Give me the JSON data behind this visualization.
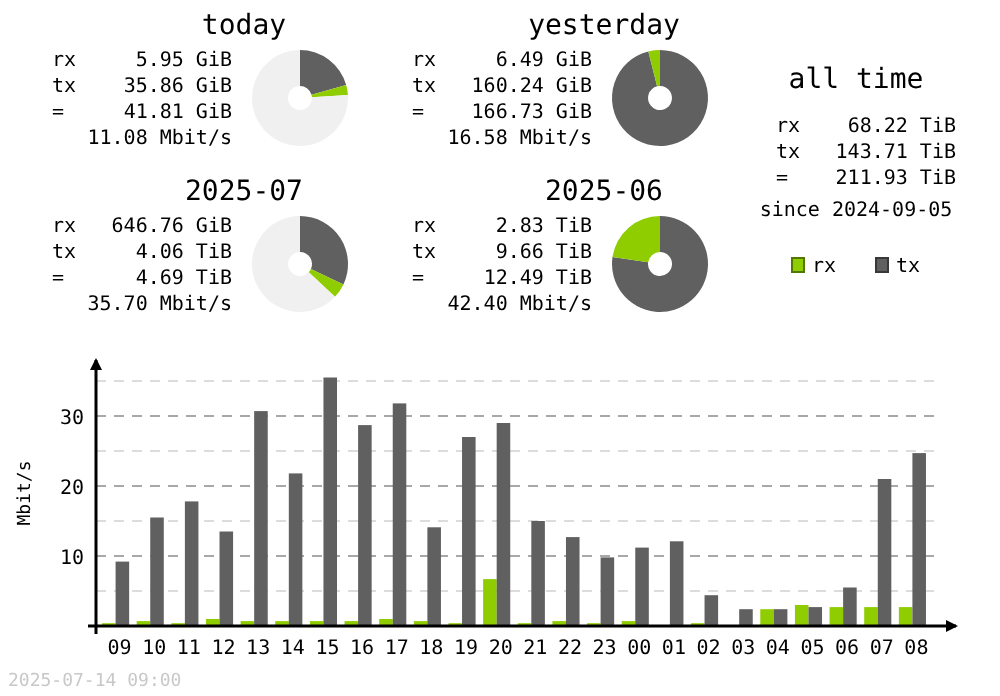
{
  "chart_data": [
    {
      "type": "donut",
      "title": "today",
      "categories": [
        null,
        null,
        null
      ],
      "values": [
        20.6,
        3.4,
        76
      ],
      "colors": [
        "#606060",
        "#8fcc00",
        "#f0f0f0"
      ],
      "annotations": [
        "rx 5.95 GiB",
        "tx 35.86 GiB",
        "= 41.81 GiB",
        "11.08 Mbit/s"
      ]
    },
    {
      "type": "donut",
      "title": "yesterday",
      "categories": [
        null,
        null
      ],
      "values": [
        96.1,
        3.9
      ],
      "colors": [
        "#606060",
        "#8fcc00"
      ],
      "annotations": [
        "rx 6.49 GiB",
        "tx 160.24 GiB",
        "= 166.73 GiB",
        "16.58 Mbit/s"
      ]
    },
    {
      "type": "other",
      "title": "all time",
      "annotations": [
        "rx 68.22 TiB",
        "tx 143.71 TiB",
        "= 211.93 TiB",
        "since 2024-09-05"
      ]
    },
    {
      "type": "donut",
      "title": "2025-07",
      "categories": [
        null,
        null,
        null
      ],
      "values": [
        32,
        5,
        63
      ],
      "colors": [
        "#606060",
        "#8fcc00",
        "#f0f0f0"
      ],
      "annotations": [
        "rx 646.76 GiB",
        "tx 4.06 TiB",
        "= 4.69 TiB",
        "35.70 Mbit/s"
      ]
    },
    {
      "type": "donut",
      "title": "2025-06",
      "categories": [
        null,
        null
      ],
      "values": [
        77.3,
        22.7
      ],
      "colors": [
        "#606060",
        "#8fcc00"
      ],
      "annotations": [
        "rx 2.83 TiB",
        "tx 9.66 TiB",
        "= 12.49 TiB",
        "42.40 Mbit/s"
      ]
    },
    {
      "type": "bar",
      "ylabel": "Mbit/s",
      "categories": [
        "09",
        "10",
        "11",
        "12",
        "13",
        "14",
        "15",
        "16",
        "17",
        "18",
        "19",
        "20",
        "21",
        "22",
        "23",
        "00",
        "01",
        "02",
        "03",
        "04",
        "05",
        "06",
        "07",
        "08"
      ],
      "series": [
        {
          "name": "rx",
          "color": "#8fcc00",
          "values": [
            0.4,
            0.7,
            0.4,
            1.0,
            0.7,
            0.7,
            0.7,
            0.7,
            1.0,
            0.7,
            0.4,
            6.7,
            0.4,
            0.7,
            0.4,
            0.7,
            0,
            0.4,
            0,
            2.4,
            3.0,
            2.7,
            2.7,
            2.7
          ]
        },
        {
          "name": "tx",
          "color": "#606060",
          "values": [
            9.2,
            15.5,
            17.8,
            13.5,
            30.7,
            21.8,
            35.5,
            28.7,
            31.8,
            14.1,
            27.0,
            29.0,
            15.0,
            12.7,
            9.8,
            11.2,
            12.1,
            4.4,
            2.4,
            2.4,
            2.7,
            5.5,
            21.0,
            24.7
          ]
        }
      ],
      "ylim": [
        0,
        38
      ],
      "yticks": [
        {
          "value": 5,
          "label": null
        },
        10,
        {
          "value": 15,
          "label": null
        },
        20,
        {
          "value": 25,
          "label": null
        },
        30,
        {
          "value": 35,
          "label": null
        }
      ],
      "grid": "y",
      "legend": "top right",
      "annotations": [
        "2025-07-14 09:00"
      ]
    }
  ]
}
